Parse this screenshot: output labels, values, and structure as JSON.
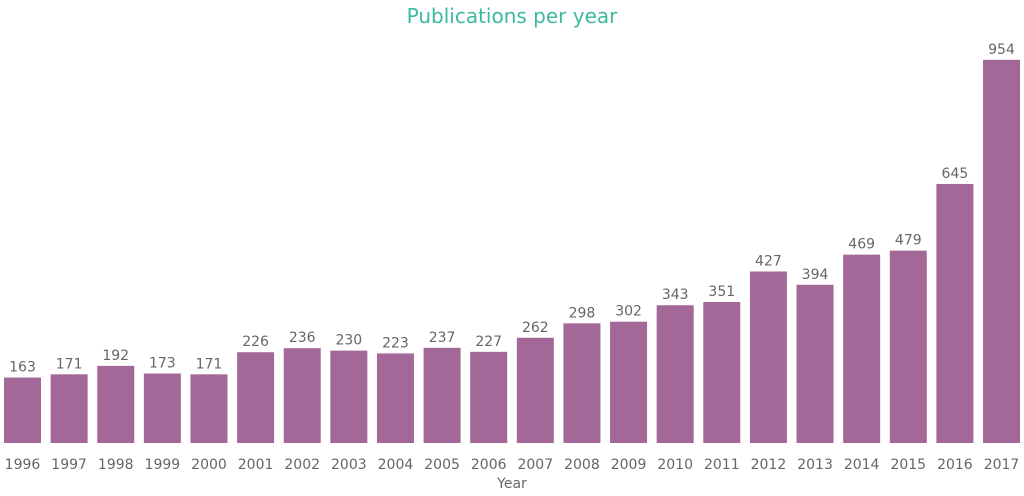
{
  "chart_data": {
    "type": "bar",
    "title": "Publications per year",
    "xlabel": "Year",
    "ylabel": "",
    "categories": [
      "1996",
      "1997",
      "1998",
      "1999",
      "2000",
      "2001",
      "2002",
      "2003",
      "2004",
      "2005",
      "2006",
      "2007",
      "2008",
      "2009",
      "2010",
      "2011",
      "2012",
      "2013",
      "2014",
      "2015",
      "2016",
      "2017"
    ],
    "values": [
      163,
      171,
      192,
      173,
      171,
      226,
      236,
      230,
      223,
      237,
      227,
      262,
      298,
      302,
      343,
      351,
      427,
      394,
      469,
      479,
      645,
      954
    ],
    "ylim": [
      0,
      1103
    ],
    "grid": false,
    "data_labels": true,
    "bar_color": "#a36897",
    "title_color": "#3cb9a0"
  }
}
